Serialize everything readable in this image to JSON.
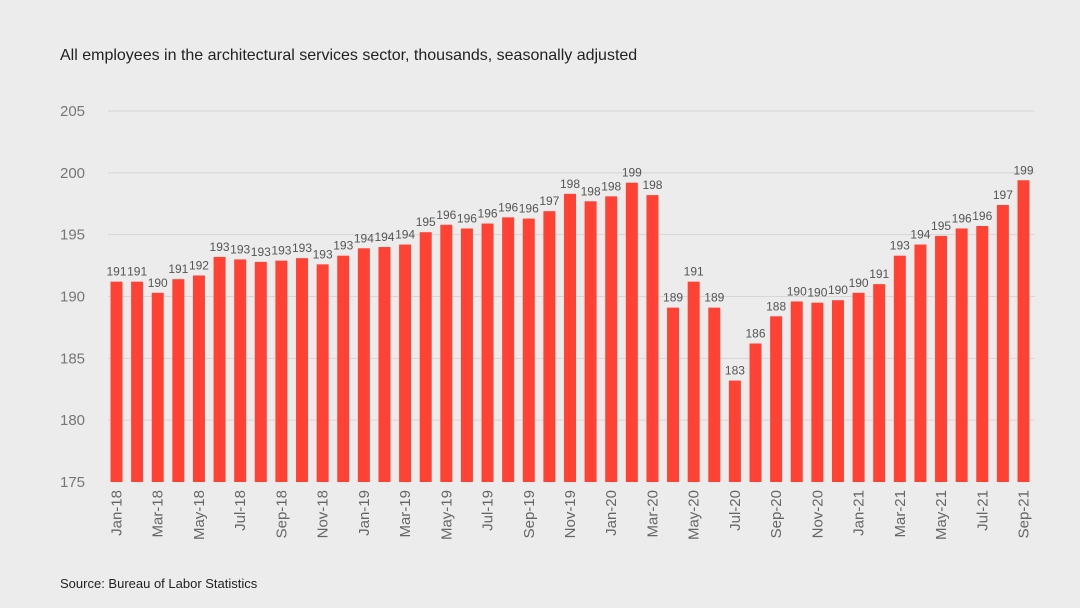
{
  "title": "All employees  in the architectural  services sector, thousands, seasonally adjusted",
  "source": "Source: Bureau of Labor Statistics",
  "colors": {
    "bar": "#ff4233",
    "grid": "#d6d6d6",
    "background": "#ececec"
  },
  "chart_data": {
    "type": "bar",
    "title": "All employees  in the architectural  services sector, thousands, seasonally adjusted",
    "xlabel": "",
    "ylabel": "",
    "ylim": [
      175,
      205
    ],
    "yticks": [
      175,
      180,
      185,
      190,
      195,
      200,
      205
    ],
    "grid": true,
    "categories": [
      "Jan-18",
      "Feb-18",
      "Mar-18",
      "Apr-18",
      "May-18",
      "Jun-18",
      "Jul-18",
      "Aug-18",
      "Sep-18",
      "Oct-18",
      "Nov-18",
      "Dec-18",
      "Jan-19",
      "Feb-19",
      "Mar-19",
      "Apr-19",
      "May-19",
      "Jun-19",
      "Jul-19",
      "Aug-19",
      "Sep-19",
      "Oct-19",
      "Nov-19",
      "Dec-19",
      "Jan-20",
      "Feb-20",
      "Mar-20",
      "Apr-20",
      "May-20",
      "Jun-20",
      "Jul-20",
      "Aug-20",
      "Sep-20",
      "Oct-20",
      "Nov-20",
      "Dec-20",
      "Jan-21",
      "Feb-21",
      "Mar-21",
      "Apr-21",
      "May-21",
      "Jun-21",
      "Jul-21",
      "Aug-21",
      "Sep-21"
    ],
    "tick_categories": [
      "Jan-18",
      "Mar-18",
      "May-18",
      "Jul-18",
      "Sep-18",
      "Nov-18",
      "Jan-19",
      "Mar-19",
      "May-19",
      "Jul-19",
      "Sep-19",
      "Nov-19",
      "Jan-20",
      "Mar-20",
      "May-20",
      "Jul-20",
      "Sep-20",
      "Nov-20",
      "Jan-21",
      "Mar-21",
      "May-21",
      "Jul-21",
      "Sep-21"
    ],
    "values": [
      191.2,
      191.2,
      190.3,
      191.4,
      191.7,
      193.2,
      193.0,
      192.8,
      192.9,
      193.1,
      192.6,
      193.3,
      193.9,
      194.0,
      194.2,
      195.2,
      195.8,
      195.5,
      195.9,
      196.4,
      196.3,
      196.9,
      198.3,
      197.7,
      198.1,
      199.2,
      198.2,
      189.1,
      191.2,
      189.1,
      183.2,
      186.2,
      188.4,
      189.6,
      189.5,
      189.7,
      190.3,
      191.0,
      193.3,
      194.2,
      194.9,
      195.5,
      195.7,
      197.4,
      199.4
    ],
    "data_labels": [
      "191",
      "191",
      "190",
      "191",
      "192",
      "193",
      "193",
      "193",
      "193",
      "193",
      "193",
      "193",
      "194",
      "194",
      "194",
      "195",
      "196",
      "196",
      "196",
      "196",
      "196",
      "197",
      "198",
      "198",
      "198",
      "199",
      "198",
      "189",
      "191",
      "189",
      "183",
      "186",
      "188",
      "190",
      "190",
      "190",
      "190",
      "191",
      "193",
      "194",
      "195",
      "196",
      "196",
      "197",
      "199"
    ]
  }
}
